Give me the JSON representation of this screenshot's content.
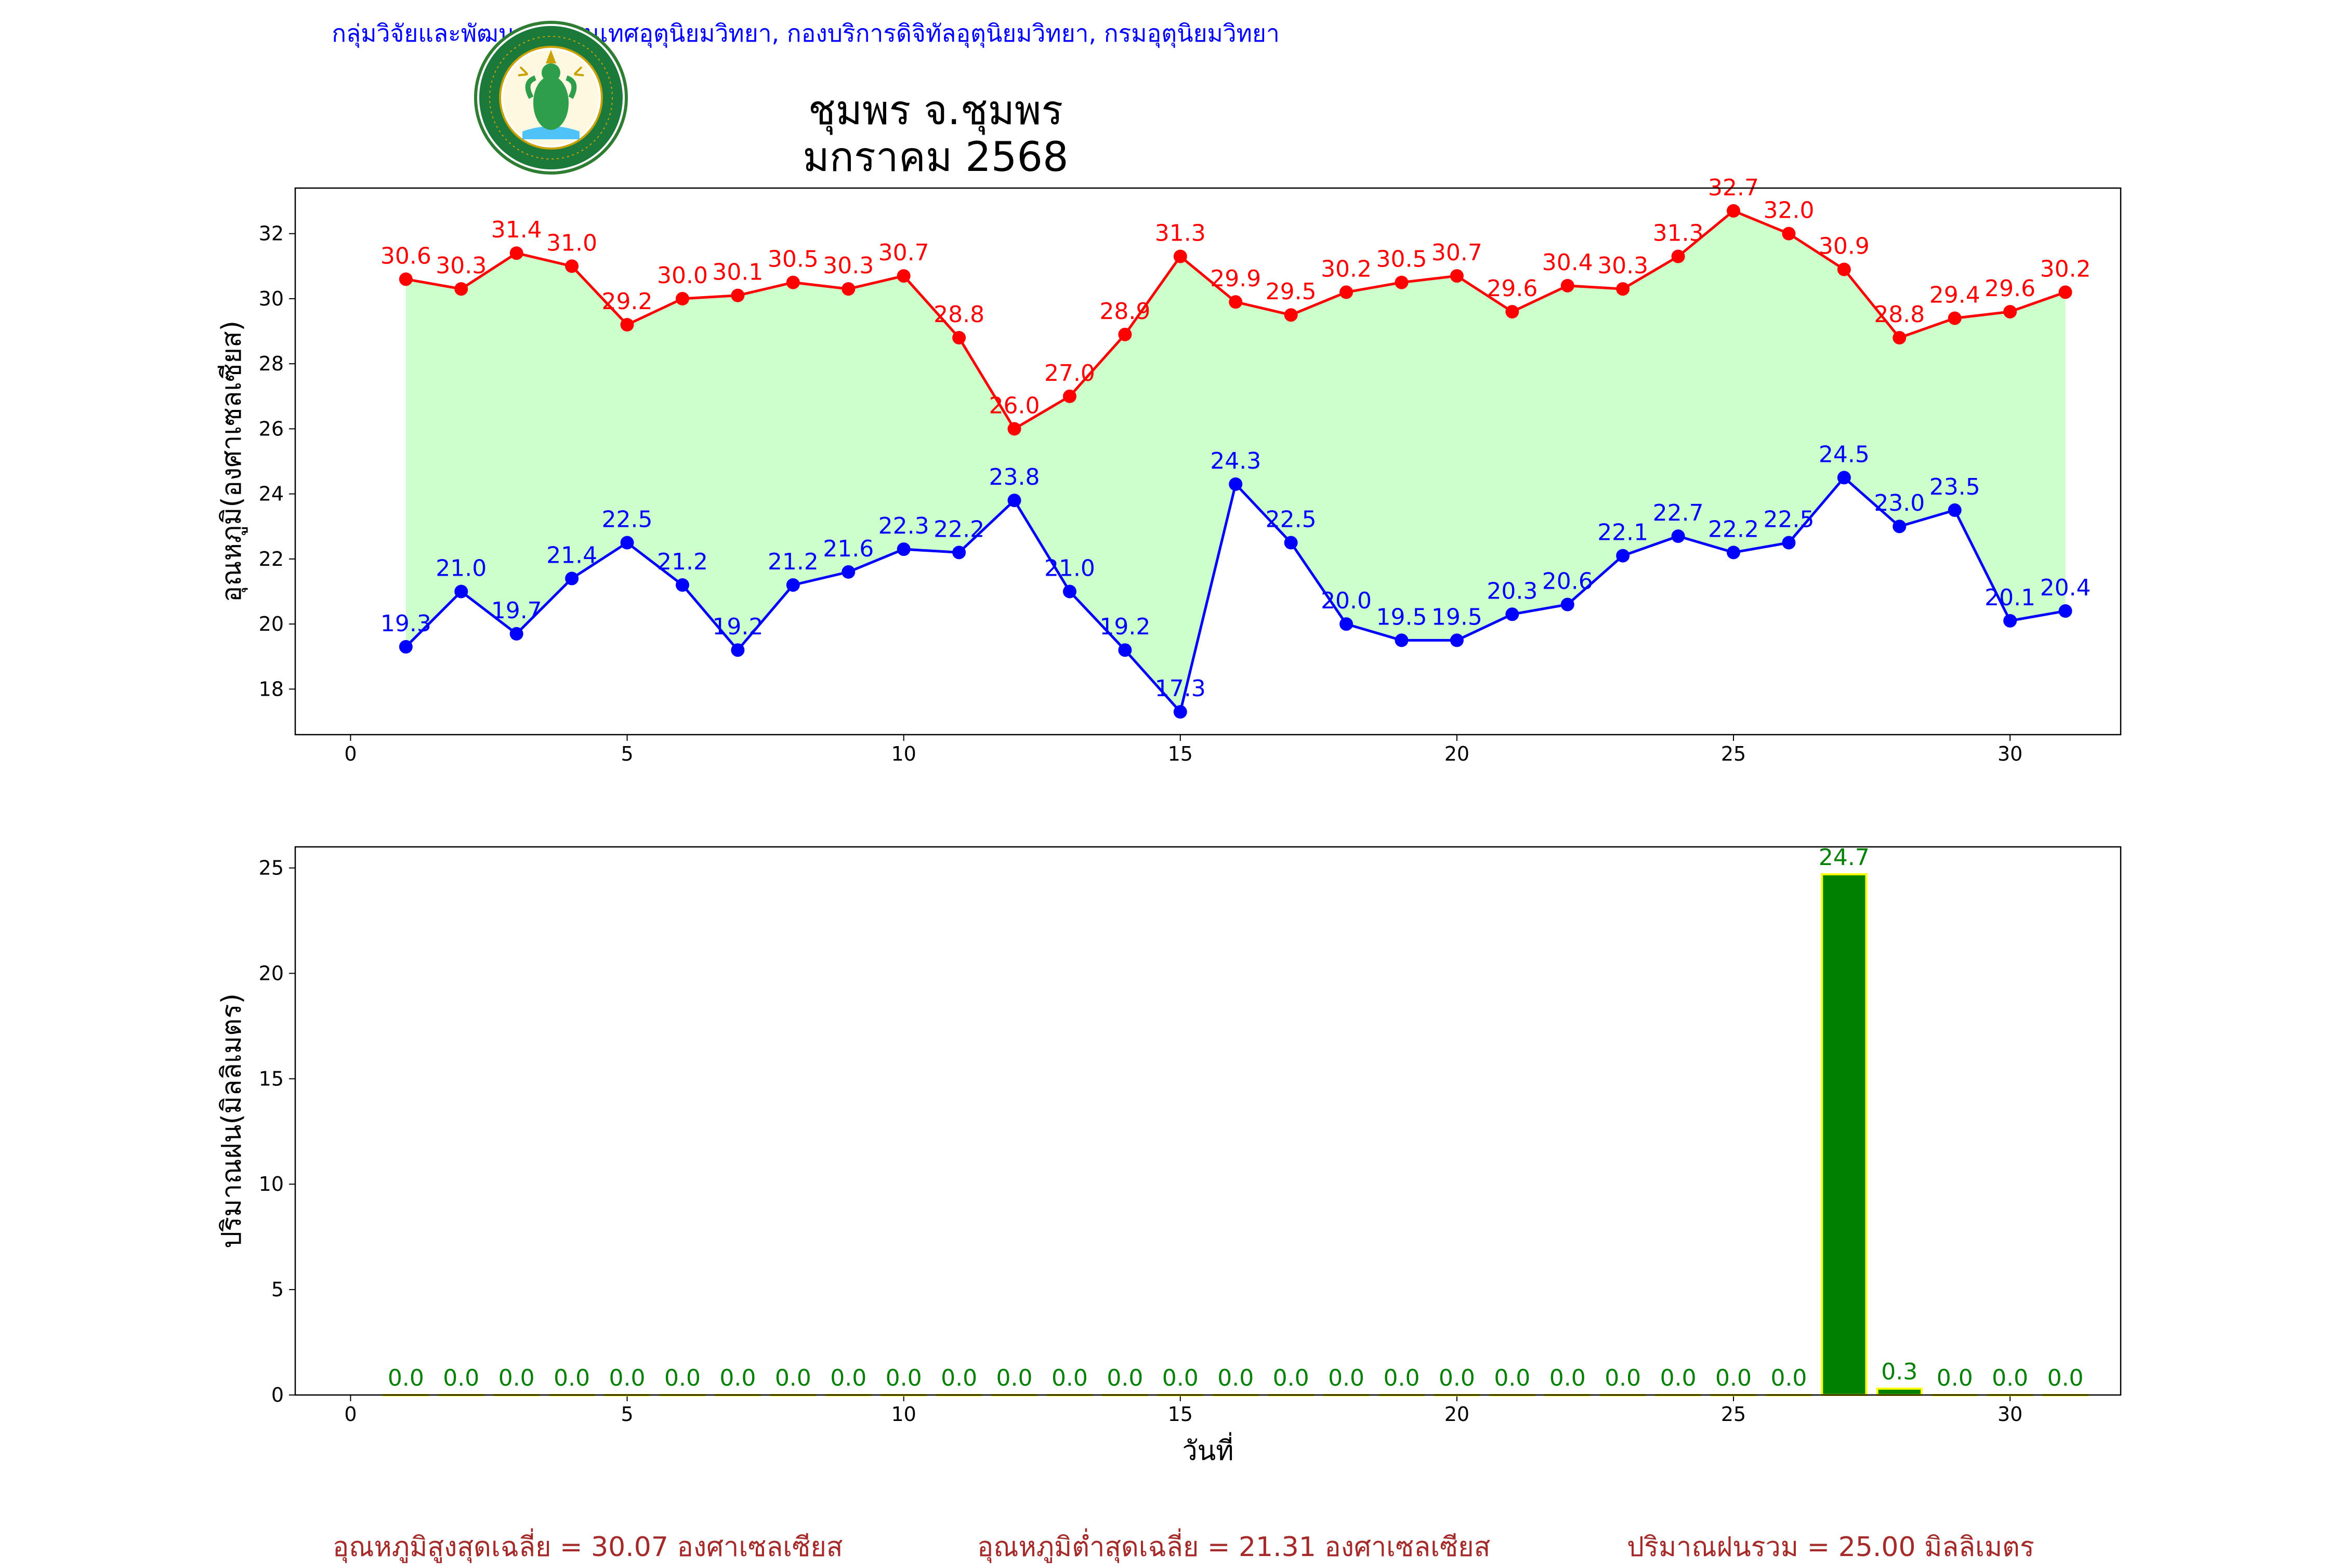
{
  "header": {
    "org_text": "กลุ่มวิจัยและพัฒนาสารสนเทศอุตุนิยมวิทยา, กองบริการดิจิทัลอุตุนิยมวิทยา, กรมอุตุนิยมวิทยา",
    "title_line1": "ชุมพร จ.ชุมพร",
    "title_line2": "มกราคม 2568",
    "logo": {
      "icon": "meteorological-department-seal",
      "ring_text_top": "กรมอุตุนิยมวิทยา",
      "ring_text_bottom": "METEOROLOGICAL DEPARTMENT"
    }
  },
  "colors": {
    "max": "#ff0000",
    "min": "#0000ff",
    "fill": "#ccffcc",
    "bar": "#008000",
    "bar_edge": "#ffff00",
    "rain_label": "#008000",
    "stats": "#a52a2a"
  },
  "chart_data": [
    {
      "type": "line",
      "ylabel": "อุณหภูมิ(องศาเซลเซียส)",
      "xlim": [
        -1,
        32
      ],
      "ylim": [
        16.6,
        33.4
      ],
      "xticks": [
        0,
        5,
        10,
        15,
        20,
        25,
        30
      ],
      "yticks": [
        18,
        20,
        22,
        24,
        26,
        28,
        30,
        32
      ],
      "x": [
        1,
        2,
        3,
        4,
        5,
        6,
        7,
        8,
        9,
        10,
        11,
        12,
        13,
        14,
        15,
        16,
        17,
        18,
        19,
        20,
        21,
        22,
        23,
        24,
        25,
        26,
        27,
        28,
        29,
        30,
        31
      ],
      "series": [
        {
          "values": [
            30.6,
            30.3,
            31.4,
            31.0,
            29.2,
            30.0,
            30.1,
            30.5,
            30.3,
            30.7,
            28.8,
            26.0,
            27.0,
            28.9,
            31.3,
            29.9,
            29.5,
            30.2,
            30.5,
            30.7,
            29.6,
            30.4,
            30.3,
            31.3,
            32.7,
            32.0,
            30.9,
            28.8,
            29.4,
            29.6,
            30.2
          ]
        },
        {
          "values": [
            19.3,
            21.0,
            19.7,
            21.4,
            22.5,
            21.2,
            19.2,
            21.2,
            21.6,
            22.3,
            22.2,
            23.8,
            21.0,
            19.2,
            17.3,
            24.3,
            22.5,
            20.0,
            19.5,
            19.5,
            20.3,
            20.6,
            22.1,
            22.7,
            22.2,
            22.5,
            24.5,
            23.0,
            23.5,
            20.1,
            20.4
          ]
        }
      ]
    },
    {
      "type": "bar",
      "ylabel": "ปริมาณฝน(มิลลิเมตร)",
      "xlabel": "วันที่",
      "xlim": [
        -1,
        32
      ],
      "ylim": [
        0,
        26
      ],
      "xticks": [
        0,
        5,
        10,
        15,
        20,
        25,
        30
      ],
      "yticks": [
        0,
        5,
        10,
        15,
        20,
        25
      ],
      "x": [
        1,
        2,
        3,
        4,
        5,
        6,
        7,
        8,
        9,
        10,
        11,
        12,
        13,
        14,
        15,
        16,
        17,
        18,
        19,
        20,
        21,
        22,
        23,
        24,
        25,
        26,
        27,
        28,
        29,
        30,
        31
      ],
      "values": [
        0,
        0,
        0,
        0,
        0,
        0,
        0,
        0,
        0,
        0,
        0,
        0,
        0,
        0,
        0,
        0,
        0,
        0,
        0,
        0,
        0,
        0,
        0,
        0,
        0,
        0,
        24.7,
        0.3,
        0,
        0,
        0
      ]
    }
  ],
  "stats": {
    "max_avg": "อุณหภูมิสูงสุดเฉลี่ย = 30.07 องศาเซลเซียส",
    "min_avg": "อุณหภูมิต่ำสุดเฉลี่ย = 21.31 องศาเซลเซียส",
    "rain_total": "ปริมาณฝนรวม = 25.00 มิลลิเมตร"
  }
}
